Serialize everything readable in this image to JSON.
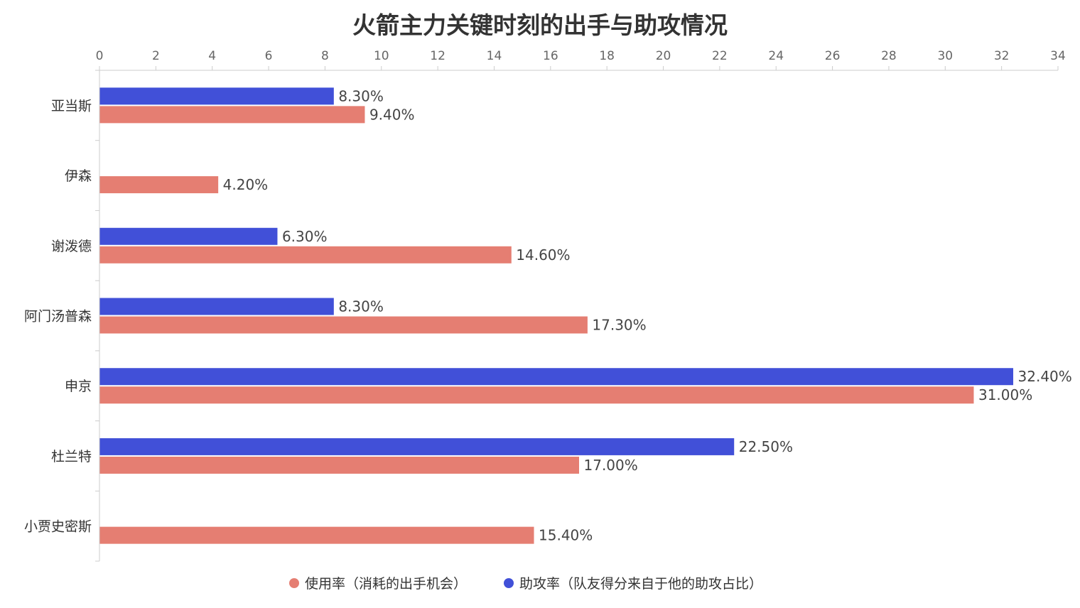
{
  "chart_data": {
    "type": "bar",
    "orientation": "horizontal",
    "title": "火箭主力关键时刻的出手与助攻情况",
    "categories": [
      "亚当斯",
      "伊森",
      "谢泼德",
      "阿门汤普森",
      "申京",
      "杜兰特",
      "小贾史密斯"
    ],
    "series": [
      {
        "name": "使用率（消耗的出手机会）",
        "color": "#e57e72",
        "values": [
          9.4,
          4.2,
          14.6,
          17.3,
          31.0,
          17.0,
          15.4
        ],
        "labels": [
          "9.40%",
          "4.20%",
          "14.60%",
          "17.30%",
          "31.00%",
          "17.00%",
          "15.40%"
        ]
      },
      {
        "name": "助攻率（队友得分来自于他的助攻占比）",
        "color": "#4150d8",
        "values": [
          8.3,
          null,
          6.3,
          8.3,
          32.4,
          22.5,
          null
        ],
        "labels": [
          "8.30%",
          "",
          "6.30%",
          "8.30%",
          "32.40%",
          "22.50%",
          ""
        ]
      }
    ],
    "xlim": [
      0,
      34
    ],
    "xticks": [
      "0",
      "2",
      "4",
      "6",
      "8",
      "10",
      "12",
      "14",
      "16",
      "18",
      "20",
      "22",
      "24",
      "26",
      "28",
      "30",
      "32",
      "34"
    ],
    "xaxis_position": "top",
    "legend_position": "bottom-center",
    "grid": false
  }
}
